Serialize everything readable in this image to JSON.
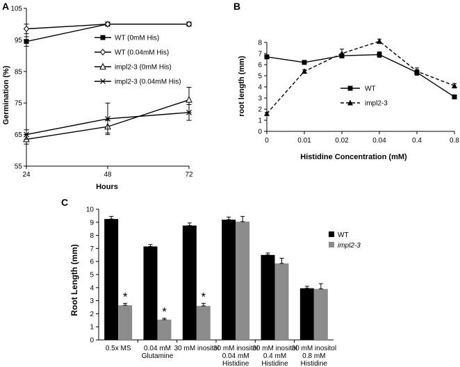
{
  "chart_data": [
    {
      "panel": "A",
      "type": "line",
      "xlabel": "Hours",
      "ylabel": "Germination (%)",
      "x": [
        24,
        48,
        72
      ],
      "x_ticks": [
        "24",
        "48",
        "72"
      ],
      "ylim": [
        55,
        105
      ],
      "y_ticks": [
        "55",
        "65",
        "75",
        "85",
        "95",
        "105"
      ],
      "series": [
        {
          "name": "WT (0mM His)",
          "marker": "filled-square",
          "values": [
            94.5,
            100,
            100
          ],
          "errors": [
            1.5,
            0,
            0
          ]
        },
        {
          "name": "WT (0.04mM His)",
          "marker": "open-diamond",
          "values": [
            98.5,
            100,
            100
          ],
          "errors": [
            1.5,
            0,
            0
          ]
        },
        {
          "name": "impl2-3 (0mM His)",
          "marker": "open-triangle",
          "values": [
            63.5,
            67.5,
            76
          ],
          "errors": [
            1.5,
            2,
            4
          ]
        },
        {
          "name": "impl2-3 (0.04mM His)",
          "marker": "x",
          "values": [
            65,
            70,
            72
          ],
          "errors": [
            1.5,
            5,
            2.5
          ]
        }
      ]
    },
    {
      "panel": "B",
      "type": "line",
      "xlabel": "Histidine Concentration (mM)",
      "ylabel": "root length (mm)",
      "categories": [
        "0",
        "0.01",
        "0.02",
        "0.04",
        "0.4",
        "0.8"
      ],
      "ylim": [
        0,
        8
      ],
      "y_ticks": [
        "0",
        "1",
        "2",
        "3",
        "4",
        "5",
        "6",
        "7",
        "8"
      ],
      "series": [
        {
          "name": "WT",
          "style": "solid",
          "marker": "square",
          "values": [
            6.7,
            6.2,
            6.8,
            6.9,
            5.3,
            3.1
          ],
          "errors": [
            0.15,
            0.1,
            0.1,
            0.25,
            0.25,
            0.15
          ]
        },
        {
          "name": "impl2-3",
          "style": "dashed",
          "marker": "triangle",
          "values": [
            1.6,
            5.4,
            7.0,
            8.1,
            5.4,
            4.1
          ],
          "errors": [
            0.1,
            0.15,
            0.4,
            0.2,
            0.3,
            0.2
          ]
        }
      ]
    },
    {
      "panel": "C",
      "type": "bar",
      "ylabel": "Root Length (mm)",
      "ylim": [
        0,
        10
      ],
      "y_ticks": [
        "0",
        "1",
        "2",
        "3",
        "4",
        "5",
        "6",
        "7",
        "8",
        "9",
        "10"
      ],
      "categories": [
        [
          "0.5x MS"
        ],
        [
          "0.04 mM",
          "Glutamine"
        ],
        [
          "30 mM inositol"
        ],
        [
          "30 mM inositol",
          "0.04 mM",
          "Histidine"
        ],
        [
          "30 mM inositol",
          "0.4 mM",
          "Histidine"
        ],
        [
          "30 mM inositol",
          "0.8 mM",
          "Histidine"
        ]
      ],
      "series": [
        {
          "name": "WT",
          "color": "#000000",
          "values": [
            9.25,
            7.15,
            8.75,
            9.2,
            6.5,
            3.95
          ],
          "errors": [
            0.2,
            0.15,
            0.2,
            0.2,
            0.15,
            0.15
          ]
        },
        {
          "name": "impl2-3",
          "color": "#8c8c8c",
          "values": [
            2.65,
            1.55,
            2.6,
            9.05,
            5.85,
            3.9
          ],
          "errors": [
            0.15,
            0.1,
            0.2,
            0.4,
            0.4,
            0.4
          ]
        }
      ],
      "significance": [
        "*",
        "*",
        "*",
        "",
        "",
        ""
      ]
    }
  ]
}
